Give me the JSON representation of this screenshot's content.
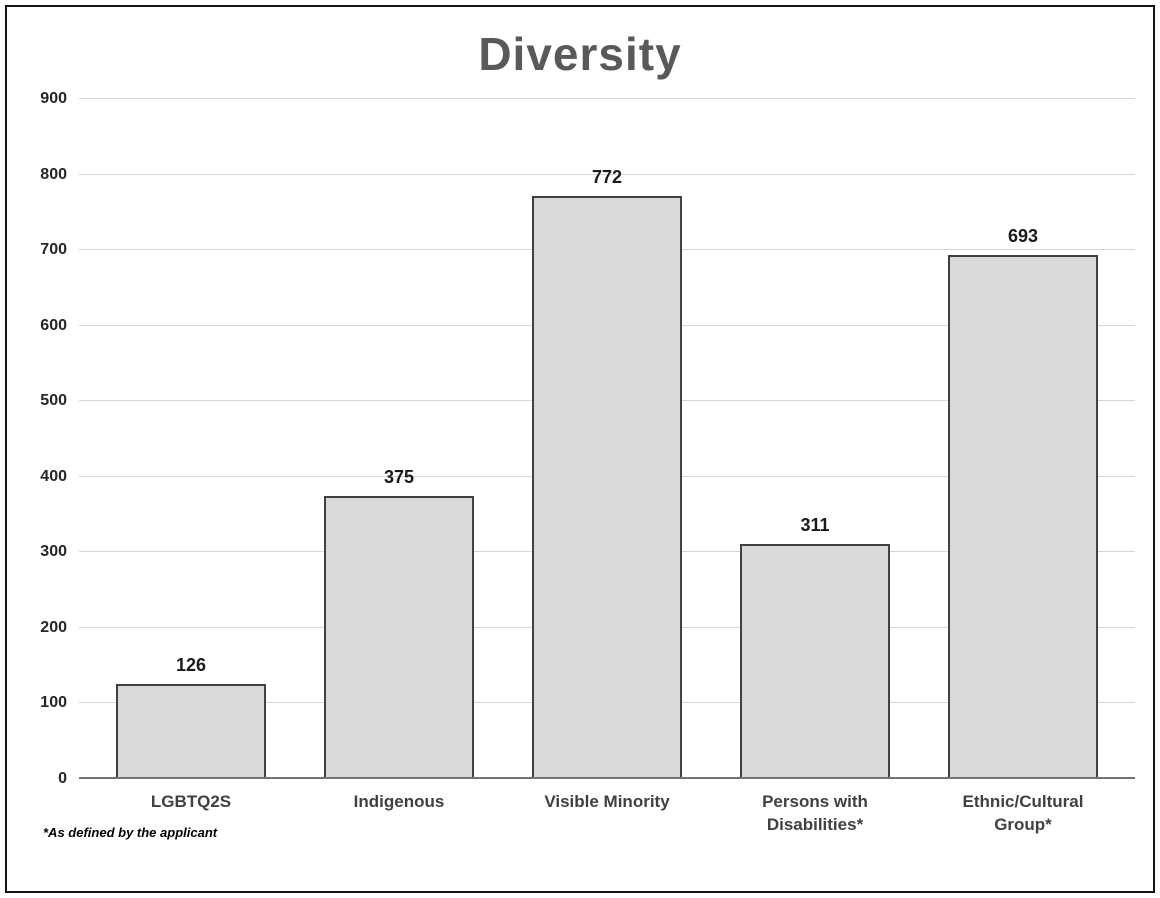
{
  "title": "Diversity",
  "footnote": "*As defined by the applicant",
  "colors": {
    "bar_fill": "#d9d9d9",
    "bar_border": "#404040",
    "gridline": "#d6d6d6",
    "axis_line": "#737373",
    "title_color": "#595959",
    "frame_border": "#141414"
  },
  "chart_data": {
    "type": "bar",
    "title": "Diversity",
    "categories": [
      "LGBTQ2S",
      "Indigenous",
      "Visible Minority",
      "Persons with Disabilities*",
      "Ethnic/Cultural Group*"
    ],
    "values": [
      126,
      375,
      772,
      311,
      693
    ],
    "xlabel": "",
    "ylabel": "",
    "ylim": [
      0,
      900
    ],
    "ytick_step": 100,
    "yticks": [
      0,
      100,
      200,
      300,
      400,
      500,
      600,
      700,
      800,
      900
    ],
    "grid": true,
    "legend": false,
    "annotation": "*As defined by the applicant"
  }
}
